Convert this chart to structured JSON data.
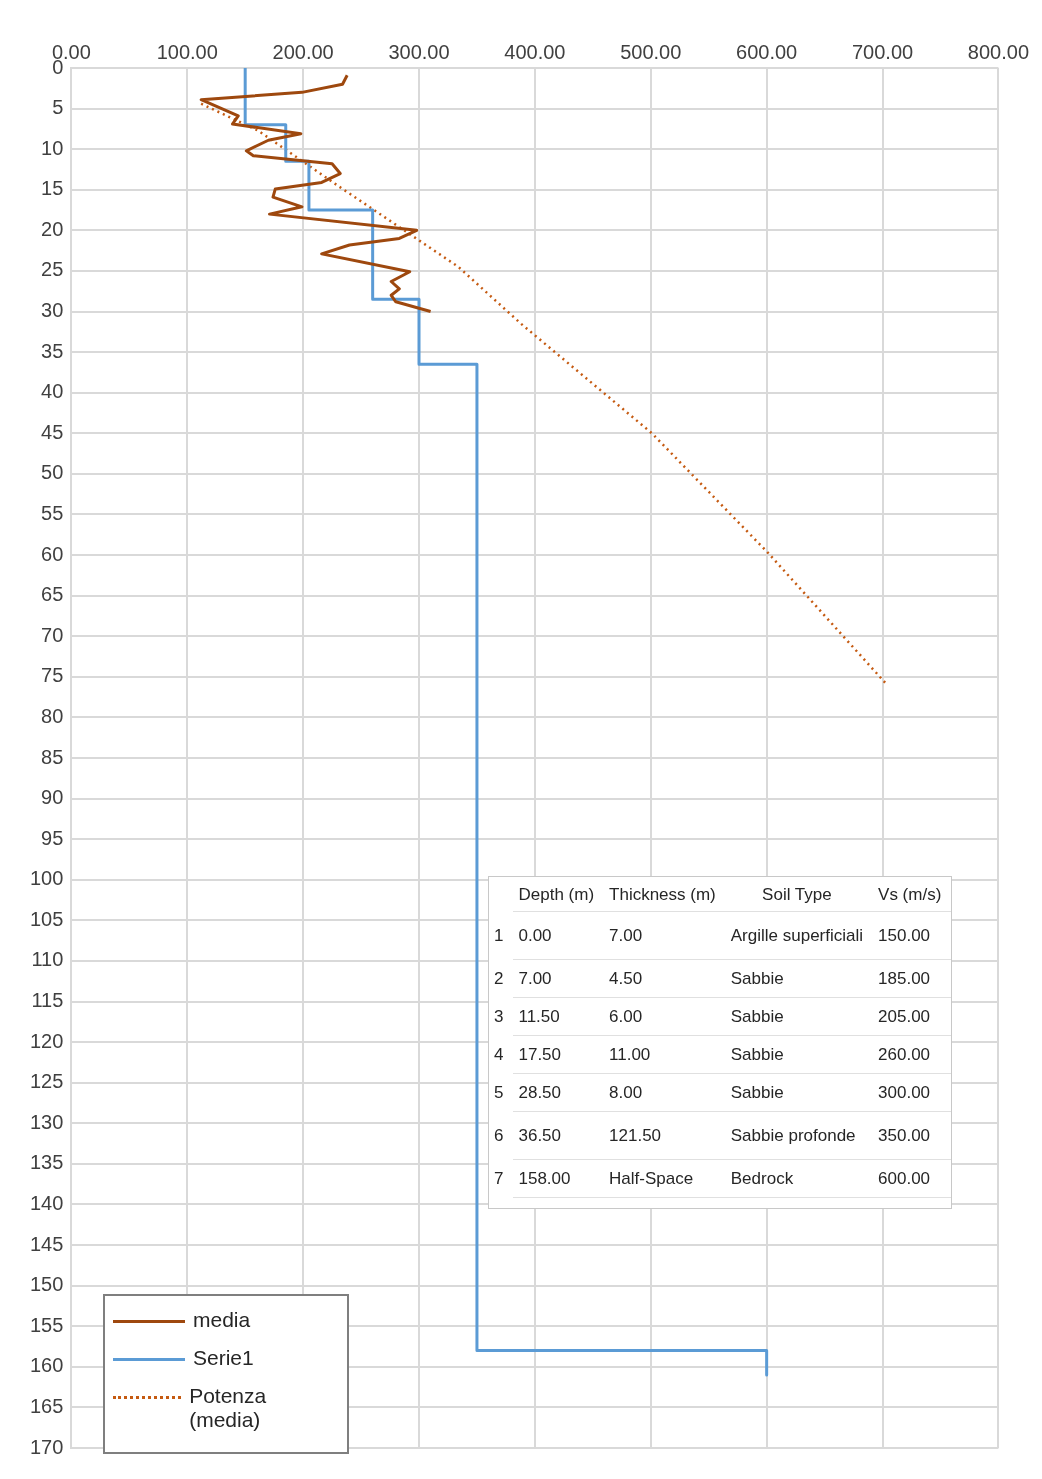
{
  "chart_data": {
    "type": "line",
    "series": [
      {
        "name": "media",
        "color": "#9e480e",
        "line_style": "solid",
        "x": [
          238,
          234,
          199,
          112,
          144,
          139,
          198,
          170,
          151,
          157,
          225,
          232,
          216,
          176,
          174,
          199,
          171,
          298,
          283,
          240,
          216,
          292,
          276,
          283,
          276,
          280,
          310
        ],
        "values": [
          0.9,
          2.0,
          3.0,
          3.9,
          5.9,
          6.9,
          8.1,
          8.9,
          10.2,
          10.8,
          11.8,
          13.0,
          14.1,
          14.9,
          15.9,
          17.1,
          18.0,
          20.0,
          21.0,
          21.8,
          22.9,
          25.1,
          26.3,
          27.2,
          28.0,
          28.8,
          30.0
        ]
      },
      {
        "name": "Serie1",
        "color": "#5b9bd5",
        "line_style": "solid",
        "x": [
          150,
          150,
          185,
          185,
          205,
          205,
          260,
          260,
          300,
          300,
          350,
          350,
          600,
          600
        ],
        "values": [
          0,
          7,
          7,
          11.5,
          11.5,
          17.5,
          17.5,
          28.5,
          28.5,
          36.5,
          36.5,
          158,
          158,
          161
        ]
      },
      {
        "name": "Potenza (media)",
        "color": "#c55a11",
        "line_style": "dotted",
        "x": [
          112,
          161,
          231,
          334,
          388,
          501,
          601,
          704
        ],
        "values": [
          4.4,
          7.7,
          14.6,
          24.5,
          31.5,
          45,
          59.7,
          76
        ]
      }
    ],
    "xlim": [
      0,
      800
    ],
    "xticks": [
      {
        "value": 0,
        "label": "0.00"
      },
      {
        "value": 100,
        "label": "100.00"
      },
      {
        "value": 200,
        "label": "200.00"
      },
      {
        "value": 300,
        "label": "300.00"
      },
      {
        "value": 400,
        "label": "400.00"
      },
      {
        "value": 500,
        "label": "500.00"
      },
      {
        "value": 600,
        "label": "600.00"
      },
      {
        "value": 700,
        "label": "700.00"
      },
      {
        "value": 800,
        "label": "800.00"
      }
    ],
    "ylim": [
      170,
      0
    ],
    "yticks": [
      0,
      5,
      10,
      15,
      20,
      25,
      30,
      35,
      40,
      45,
      50,
      55,
      60,
      65,
      70,
      75,
      80,
      85,
      90,
      95,
      100,
      105,
      110,
      115,
      120,
      125,
      130,
      135,
      140,
      145,
      150,
      155,
      160,
      165,
      170
    ],
    "grid": true,
    "legend": "bottom left",
    "marker": "none",
    "annotations": [
      "Depth (m)",
      "Thickness (m)",
      "Soil Type",
      "Vs (m/s)",
      "1",
      "0.00",
      "7.00",
      "Argille superficiali",
      "150.00",
      "2",
      "7.00",
      "4.50",
      "Sabbie",
      "185.00",
      "3",
      "11.50",
      "6.00",
      "Sabbie",
      "205.00",
      "4",
      "17.50",
      "11.00",
      "Sabbie",
      "260.00",
      "5",
      "28.50",
      "8.00",
      "Sabbie",
      "300.00",
      "6",
      "36.50",
      "121.50",
      "Sabbie profonde",
      "350.00",
      "7",
      "158.00",
      "Half-Space",
      "Bedrock",
      "600.00"
    ]
  }
}
